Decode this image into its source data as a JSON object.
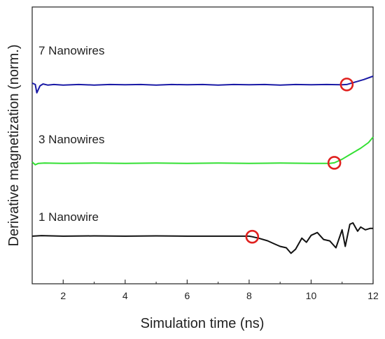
{
  "chart_data": {
    "type": "line",
    "title": "",
    "xlabel": "Simulation time (ns)",
    "ylabel": "Derivative magnetization (norm.)",
    "xlim": [
      1,
      12
    ],
    "x_ticks": [
      "2",
      "4",
      "6",
      "8",
      "10",
      "12"
    ],
    "x_tick_values": [
      2,
      4,
      6,
      8,
      10,
      12
    ],
    "y_ticks": [],
    "grid": false,
    "legend": "none",
    "series": [
      {
        "name": "7 Nanowires",
        "color": "#1a1aa6",
        "marker_x": 11.15,
        "points": [
          [
            1.0,
            0.725
          ],
          [
            1.1,
            0.72
          ],
          [
            1.15,
            0.69
          ],
          [
            1.25,
            0.715
          ],
          [
            1.35,
            0.722
          ],
          [
            1.5,
            0.718
          ],
          [
            1.7,
            0.72
          ],
          [
            2.0,
            0.718
          ],
          [
            2.5,
            0.72
          ],
          [
            3.0,
            0.718
          ],
          [
            3.5,
            0.72
          ],
          [
            4.0,
            0.719
          ],
          [
            4.5,
            0.72
          ],
          [
            5.0,
            0.718
          ],
          [
            5.5,
            0.72
          ],
          [
            6.0,
            0.719
          ],
          [
            6.5,
            0.72
          ],
          [
            7.0,
            0.718
          ],
          [
            7.5,
            0.72
          ],
          [
            8.0,
            0.719
          ],
          [
            8.5,
            0.72
          ],
          [
            9.0,
            0.718
          ],
          [
            9.5,
            0.72
          ],
          [
            10.0,
            0.719
          ],
          [
            10.5,
            0.72
          ],
          [
            11.0,
            0.719
          ],
          [
            11.15,
            0.72
          ],
          [
            11.4,
            0.728
          ],
          [
            11.7,
            0.738
          ],
          [
            12.0,
            0.75
          ]
        ]
      },
      {
        "name": "3 Nanowires",
        "color": "#33e033",
        "marker_x": 10.75,
        "points": [
          [
            1.0,
            0.44
          ],
          [
            1.1,
            0.43
          ],
          [
            1.2,
            0.435
          ],
          [
            1.4,
            0.436
          ],
          [
            2.0,
            0.435
          ],
          [
            3.0,
            0.436
          ],
          [
            4.0,
            0.435
          ],
          [
            5.0,
            0.436
          ],
          [
            6.0,
            0.435
          ],
          [
            7.0,
            0.436
          ],
          [
            8.0,
            0.435
          ],
          [
            9.0,
            0.436
          ],
          [
            10.0,
            0.435
          ],
          [
            10.6,
            0.435
          ],
          [
            10.75,
            0.437
          ],
          [
            11.0,
            0.45
          ],
          [
            11.3,
            0.47
          ],
          [
            11.6,
            0.49
          ],
          [
            11.85,
            0.51
          ],
          [
            12.0,
            0.53
          ]
        ]
      },
      {
        "name": "1 Nanowire",
        "color": "#111111",
        "marker_x": 8.1,
        "points": [
          [
            1.0,
            0.172
          ],
          [
            1.3,
            0.174
          ],
          [
            2.0,
            0.172
          ],
          [
            3.0,
            0.173
          ],
          [
            4.0,
            0.172
          ],
          [
            5.0,
            0.173
          ],
          [
            6.0,
            0.172
          ],
          [
            7.0,
            0.172
          ],
          [
            8.0,
            0.172
          ],
          [
            8.1,
            0.17
          ],
          [
            8.3,
            0.165
          ],
          [
            8.6,
            0.155
          ],
          [
            8.8,
            0.145
          ],
          [
            9.0,
            0.135
          ],
          [
            9.2,
            0.13
          ],
          [
            9.35,
            0.11
          ],
          [
            9.5,
            0.125
          ],
          [
            9.7,
            0.165
          ],
          [
            9.85,
            0.15
          ],
          [
            10.0,
            0.175
          ],
          [
            10.2,
            0.185
          ],
          [
            10.4,
            0.16
          ],
          [
            10.6,
            0.155
          ],
          [
            10.8,
            0.13
          ],
          [
            11.0,
            0.195
          ],
          [
            11.1,
            0.135
          ],
          [
            11.25,
            0.215
          ],
          [
            11.35,
            0.22
          ],
          [
            11.5,
            0.19
          ],
          [
            11.6,
            0.205
          ],
          [
            11.75,
            0.195
          ],
          [
            11.9,
            0.2
          ],
          [
            12.0,
            0.2
          ]
        ]
      }
    ]
  }
}
